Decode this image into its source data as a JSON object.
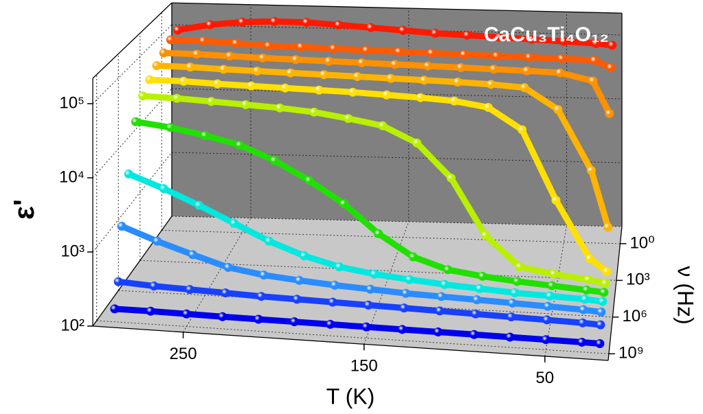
{
  "chart_data": {
    "type": "waterfall3d",
    "title": "CaCu₃Ti₄O₁₂",
    "x_label": "T (K)",
    "y_label": "ε'",
    "z_label": "ν (Hz)",
    "xlim": [
      300,
      15
    ],
    "xticks": [
      250,
      150,
      50
    ],
    "ylim": [
      100,
      220000
    ],
    "yscale": "log",
    "yticks": [
      {
        "value": 100,
        "label": "10²"
      },
      {
        "value": 1000,
        "label": "10³"
      },
      {
        "value": 10000,
        "label": "10⁴"
      },
      {
        "value": 100000,
        "label": "10⁵"
      }
    ],
    "zlim": [
      3500000000,
      0.04
    ],
    "zscale": "log",
    "zticks": [
      {
        "value": 1,
        "label": "10⁰"
      },
      {
        "value": 1000,
        "label": "10³"
      },
      {
        "value": 1000000,
        "label": "10⁶"
      },
      {
        "value": 1000000000,
        "label": "10⁹"
      }
    ],
    "grid": true,
    "x": [
      290,
      270,
      250,
      230,
      210,
      190,
      170,
      150,
      130,
      110,
      90,
      70,
      50,
      30,
      20
    ],
    "series": [
      {
        "z": 1,
        "color": "#ff1a00",
        "values": [
          120000,
          150000,
          170000,
          180000,
          180000,
          170000,
          160000,
          150000,
          140000,
          135000,
          130000,
          125000,
          120000,
          115000,
          110000
        ]
      },
      {
        "z": 10,
        "color": "#ff5a00",
        "values": [
          110000,
          110000,
          105000,
          100000,
          100000,
          98000,
          96000,
          95000,
          94000,
          93000,
          92000,
          91000,
          90000,
          88000,
          70000
        ]
      },
      {
        "z": 100,
        "color": "#ff9000",
        "values": [
          90000,
          90000,
          88000,
          86000,
          85000,
          84000,
          83000,
          82000,
          81000,
          80000,
          79000,
          78000,
          76000,
          60000,
          20000
        ]
      },
      {
        "z": 1000,
        "color": "#ffb400",
        "values": [
          75000,
          75000,
          73000,
          72000,
          71000,
          70000,
          69000,
          68000,
          67000,
          66000,
          64000,
          60000,
          30000,
          4000,
          600
        ]
      },
      {
        "z": 10000,
        "color": "#ffe000",
        "values": [
          60000,
          60000,
          58000,
          57000,
          56000,
          55000,
          54000,
          52000,
          50000,
          47000,
          40000,
          20000,
          2000,
          300,
          200
        ]
      },
      {
        "z": 100000,
        "color": "#b8f000",
        "values": [
          45000,
          44000,
          42000,
          40000,
          38000,
          35000,
          30000,
          25000,
          15000,
          5000,
          800,
          300,
          250,
          220,
          200
        ]
      },
      {
        "z": 1000000,
        "color": "#20e000",
        "values": [
          25000,
          22000,
          18000,
          14000,
          9000,
          5000,
          2500,
          1000,
          500,
          350,
          300,
          270,
          250,
          230,
          220
        ]
      },
      {
        "z": 10000000,
        "color": "#00e8e0",
        "values": [
          6000,
          4000,
          2500,
          1500,
          900,
          600,
          450,
          380,
          340,
          310,
          290,
          270,
          260,
          250,
          240
        ]
      },
      {
        "z": 100000000,
        "color": "#2a8cff",
        "values": [
          1500,
          1000,
          700,
          500,
          420,
          380,
          350,
          330,
          310,
          300,
          290,
          280,
          270,
          260,
          250
        ]
      },
      {
        "z": 300000000,
        "color": "#1840ff",
        "values": [
          300,
          280,
          270,
          260,
          250,
          245,
          240,
          235,
          230,
          225,
          220,
          215,
          210,
          205,
          200
        ]
      },
      {
        "z": 1000000000,
        "color": "#0000ee",
        "values": [
          150,
          150,
          148,
          146,
          145,
          144,
          143,
          142,
          141,
          140,
          139,
          138,
          137,
          136,
          135
        ]
      }
    ]
  }
}
